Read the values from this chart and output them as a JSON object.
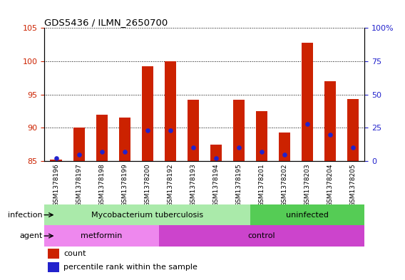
{
  "title": "GDS5436 / ILMN_2650700",
  "samples": [
    "GSM1378196",
    "GSM1378197",
    "GSM1378198",
    "GSM1378199",
    "GSM1378200",
    "GSM1378192",
    "GSM1378193",
    "GSM1378194",
    "GSM1378195",
    "GSM1378201",
    "GSM1378202",
    "GSM1378203",
    "GSM1378204",
    "GSM1378205"
  ],
  "counts": [
    85.2,
    90.0,
    92.0,
    91.5,
    99.3,
    100.0,
    94.2,
    87.5,
    94.2,
    92.5,
    89.3,
    102.8,
    97.0,
    94.3
  ],
  "percentiles": [
    2,
    5,
    7,
    7,
    23,
    23,
    10,
    2,
    10,
    7,
    5,
    28,
    20,
    10
  ],
  "ymin": 85,
  "ymax": 105,
  "yticks": [
    85,
    90,
    95,
    100,
    105
  ],
  "y2min": 0,
  "y2max": 100,
  "y2ticks": [
    0,
    25,
    50,
    75,
    100
  ],
  "bar_color": "#cc2200",
  "dot_color": "#2222cc",
  "plot_bg": "#ffffff",
  "xtick_bg": "#d0d0d0",
  "infection_groups": [
    {
      "label": "Mycobacterium tuberculosis",
      "start": 0,
      "end": 9,
      "color": "#aaeaaa"
    },
    {
      "label": "uninfected",
      "start": 9,
      "end": 14,
      "color": "#55cc55"
    }
  ],
  "agent_groups": [
    {
      "label": "metformin",
      "start": 0,
      "end": 5,
      "color": "#ee88ee"
    },
    {
      "label": "control",
      "start": 5,
      "end": 14,
      "color": "#cc44cc"
    }
  ],
  "infection_label": "infection",
  "agent_label": "agent",
  "legend_count": "count",
  "legend_pct": "percentile rank within the sample",
  "left_axis_color": "#cc2200",
  "right_axis_color": "#2222cc"
}
